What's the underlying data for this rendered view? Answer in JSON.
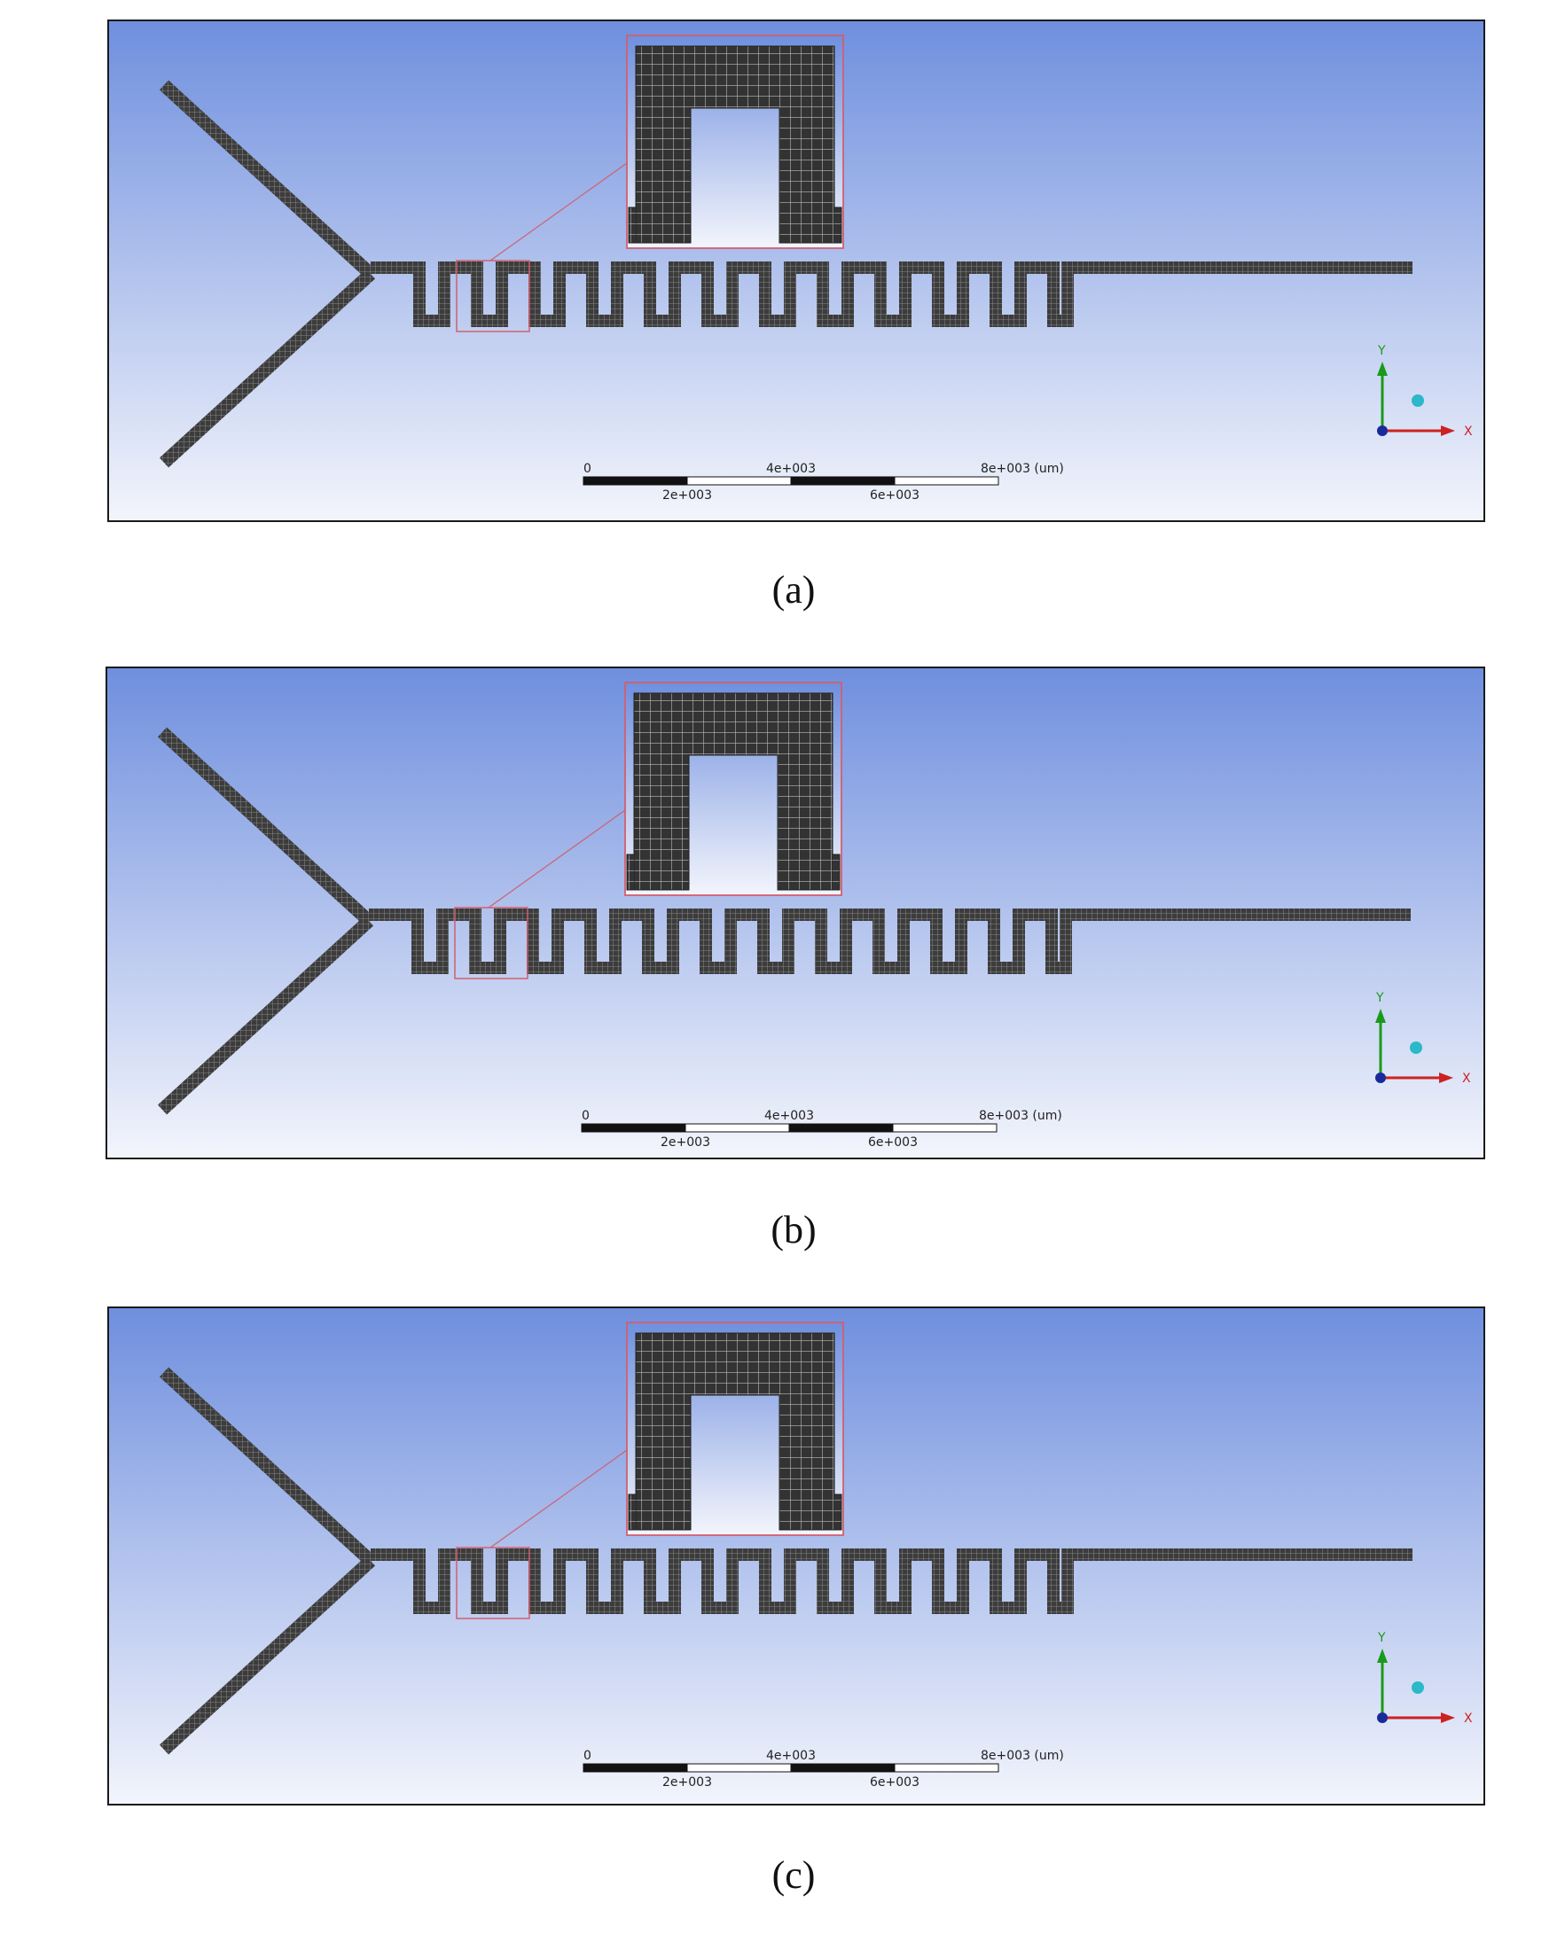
{
  "panels": [
    {
      "caption": "(a)",
      "scale_bar": {
        "top_labels": [
          "0",
          "4e+003",
          "8e+003 (um)"
        ],
        "bottom_labels": [
          "2e+003",
          "6e+003"
        ]
      },
      "triad": {
        "y_label": "Y",
        "x_label": "X"
      }
    },
    {
      "caption": "(b)",
      "scale_bar": {
        "top_labels": [
          "0",
          "4e+003",
          "8e+003 (um)"
        ],
        "bottom_labels": [
          "2e+003",
          "6e+003"
        ]
      },
      "triad": {
        "y_label": "Y",
        "x_label": "X"
      }
    },
    {
      "caption": "(c)",
      "scale_bar": {
        "top_labels": [
          "0",
          "4e+003",
          "8e+003 (um)"
        ],
        "bottom_labels": [
          "2e+003",
          "6e+003"
        ]
      },
      "triad": {
        "y_label": "Y",
        "x_label": "X"
      }
    }
  ],
  "colors": {
    "viewport_top": "#6f8fde",
    "viewport_bottom": "#f3f5fc",
    "mesh_fill": "#3c3c3c",
    "mesh_line": "#9a9a9a",
    "zoom_frame": "#d06070",
    "axis_y": "#1a9a1a",
    "axis_x": "#cc2222",
    "axis_z": "#1a2a9a",
    "sphere": "#2bb8c8"
  }
}
